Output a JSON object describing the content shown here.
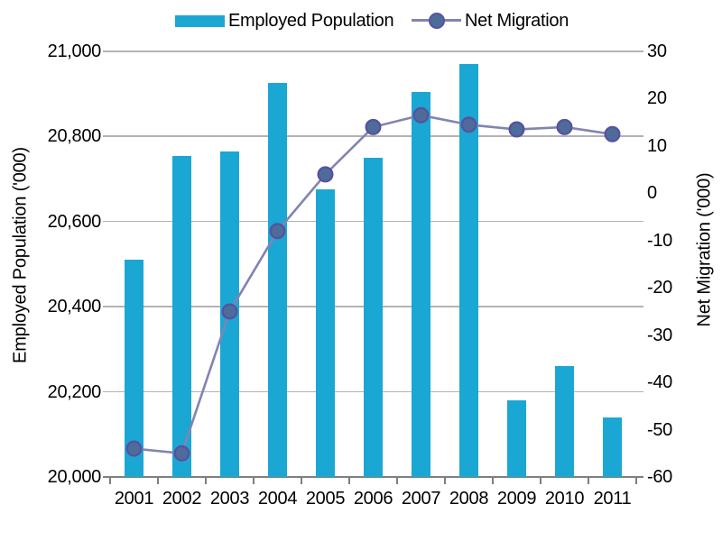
{
  "legend": {
    "items": [
      {
        "label": "Employed Population"
      },
      {
        "label": "Net Migration"
      }
    ]
  },
  "colors": {
    "bar": "#1BA7D4",
    "line": "#8184B2",
    "marker_fill": "#4E6C99",
    "marker_stroke": "#5752A0",
    "grid": "#B3B3B3",
    "axis": "#7F7F7F",
    "text": "#000000"
  },
  "chart_data": {
    "type": "bar",
    "subtype": "dual-axis-bar-and-line",
    "title": "",
    "categories": [
      "2001",
      "2002",
      "2003",
      "2004",
      "2005",
      "2006",
      "2007",
      "2008",
      "2009",
      "2010",
      "2011"
    ],
    "series": [
      {
        "name": "Employed Population",
        "type": "bar",
        "axis": "left",
        "values": [
          20510,
          20755,
          20765,
          20925,
          20675,
          20750,
          20905,
          20970,
          20180,
          20260,
          20140
        ]
      },
      {
        "name": "Net Migration",
        "type": "line",
        "axis": "right",
        "values": [
          -54,
          -55,
          -25,
          -8,
          4,
          14,
          16.5,
          14.5,
          13.5,
          14,
          12.5
        ]
      }
    ],
    "left_axis": {
      "label": "Employed Population ('000)",
      "min": 20000,
      "max": 21000,
      "step": 200,
      "tick_labels": [
        "21,000",
        "20,800",
        "20,600",
        "20,400",
        "20,200",
        "20,000"
      ]
    },
    "right_axis": {
      "label": "Net Migration ('000)",
      "min": -60,
      "max": 30,
      "step": 10,
      "tick_labels": [
        "30",
        "20",
        "10",
        "0",
        "-10",
        "-20",
        "-30",
        "-40",
        "-50",
        "-60"
      ]
    },
    "grid": true,
    "legend_position": "top"
  }
}
